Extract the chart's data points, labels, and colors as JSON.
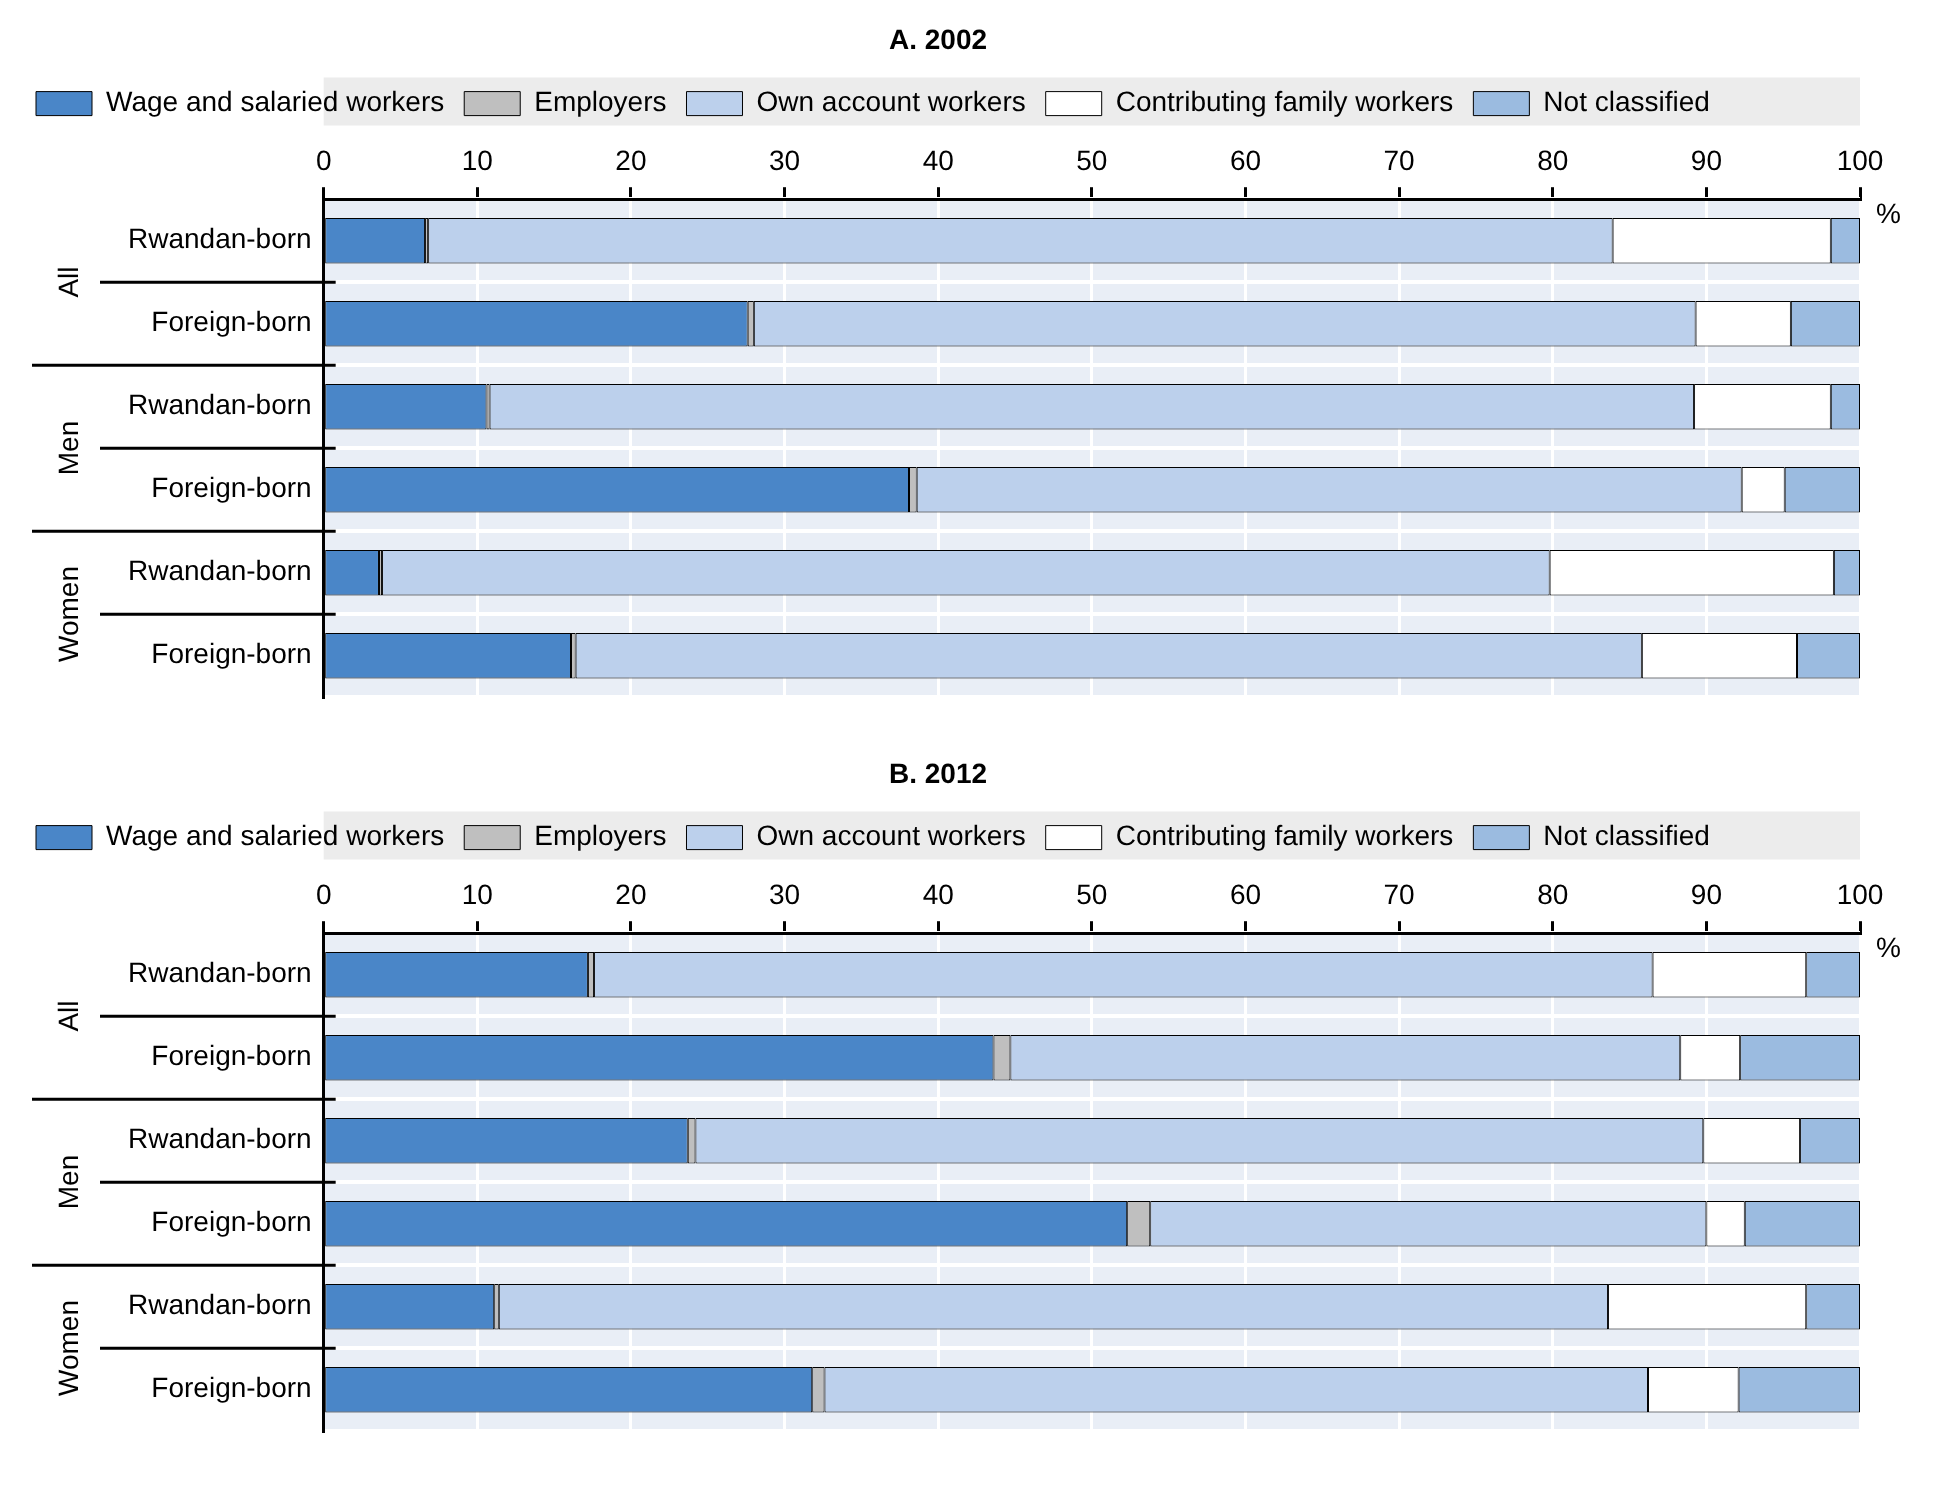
{
  "chart_data": [
    {
      "type": "bar",
      "title": "A. 2002",
      "orientation": "horizontal",
      "stacked": true,
      "categories": [
        "Rwandan-born",
        "Foreign-born",
        "Rwandan-born",
        "Foreign-born",
        "Rwandan-born",
        "Foreign-born"
      ],
      "series": [
        {
          "name": "Wage and salaried workers",
          "color": "#4a86c8",
          "values": [
            6.6,
            27.6,
            10.6,
            38.1,
            3.6,
            16.1
          ]
        },
        {
          "name": "Employers",
          "color": "#bfbfbf",
          "values": [
            0.2,
            0.4,
            0.2,
            0.5,
            0.2,
            0.3
          ]
        },
        {
          "name": "Own account workers",
          "color": "#bcd0ec",
          "values": [
            77.1,
            61.3,
            78.4,
            53.7,
            76.0,
            69.4
          ]
        },
        {
          "name": "Contributing family workers",
          "color": "#ffffff",
          "values": [
            14.2,
            6.2,
            8.9,
            2.8,
            18.5,
            10.1
          ]
        },
        {
          "name": "Not classified",
          "color": "#9bbbe0",
          "values": [
            1.9,
            4.5,
            1.9,
            4.9,
            1.7,
            4.1
          ]
        }
      ],
      "xlim": [
        0,
        100
      ],
      "xticks": [
        0,
        10,
        20,
        30,
        40,
        50,
        60,
        70,
        80,
        90,
        100
      ],
      "xlabel": "%",
      "annotations": [
        "All",
        "Men",
        "Women"
      ],
      "grid": true,
      "legend": "top"
    },
    {
      "type": "bar",
      "title": "B. 2012",
      "orientation": "horizontal",
      "stacked": true,
      "categories": [
        "Rwandan-born",
        "Foreign-born",
        "Rwandan-born",
        "Foreign-born",
        "Rwandan-born",
        "Foreign-born"
      ],
      "series": [
        {
          "name": "Wage and salaried workers",
          "color": "#4a86c8",
          "values": [
            17.2,
            43.6,
            23.7,
            52.3,
            11.1,
            31.8
          ]
        },
        {
          "name": "Employers",
          "color": "#bfbfbf",
          "values": [
            0.4,
            1.1,
            0.5,
            1.5,
            0.3,
            0.8
          ]
        },
        {
          "name": "Own account workers",
          "color": "#bcd0ec",
          "values": [
            68.9,
            43.6,
            65.6,
            36.2,
            72.2,
            53.6
          ]
        },
        {
          "name": "Contributing family workers",
          "color": "#ffffff",
          "values": [
            10.0,
            3.9,
            6.3,
            2.5,
            12.9,
            5.9
          ]
        },
        {
          "name": "Not classified",
          "color": "#9bbbe0",
          "values": [
            3.5,
            7.8,
            3.9,
            7.5,
            3.5,
            7.9
          ]
        }
      ],
      "xlim": [
        0,
        100
      ],
      "xticks": [
        0,
        10,
        20,
        30,
        40,
        50,
        60,
        70,
        80,
        90,
        100
      ],
      "xlabel": "%",
      "annotations": [
        "All",
        "Men",
        "Women"
      ],
      "grid": true,
      "legend": "top"
    }
  ]
}
